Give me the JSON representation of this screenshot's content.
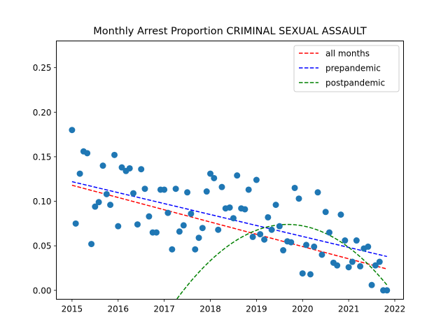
{
  "chart_data": {
    "type": "scatter",
    "title": "Monthly Arrest Proportion CRIMINAL SEXUAL ASSAULT",
    "xlabel": "",
    "ylabel": "",
    "xlim": [
      2014.66,
      2022.19
    ],
    "ylim": [
      -0.01,
      0.28
    ],
    "xticks": [
      2015,
      2016,
      2017,
      2018,
      2019,
      2020,
      2021,
      2022
    ],
    "yticks": [
      0.0,
      0.05,
      0.1,
      0.15,
      0.2,
      0.25
    ],
    "xtick_labels": [
      "2015",
      "2016",
      "2017",
      "2018",
      "2019",
      "2020",
      "2021",
      "2022"
    ],
    "ytick_labels": [
      "0.00",
      "0.05",
      "0.10",
      "0.15",
      "0.20",
      "0.25"
    ],
    "grid": false,
    "legend_position": "top-right",
    "scatter": {
      "color": "#1f77b4",
      "points": [
        [
          2015.0,
          0.18
        ],
        [
          2015.08,
          0.075
        ],
        [
          2015.17,
          0.131
        ],
        [
          2015.25,
          0.156
        ],
        [
          2015.33,
          0.154
        ],
        [
          2015.42,
          0.052
        ],
        [
          2015.5,
          0.094
        ],
        [
          2015.58,
          0.099
        ],
        [
          2015.67,
          0.14
        ],
        [
          2015.75,
          0.108
        ],
        [
          2015.83,
          0.096
        ],
        [
          2015.92,
          0.152
        ],
        [
          2016.0,
          0.072
        ],
        [
          2016.08,
          0.138
        ],
        [
          2016.17,
          0.134
        ],
        [
          2016.25,
          0.137
        ],
        [
          2016.33,
          0.109
        ],
        [
          2016.42,
          0.074
        ],
        [
          2016.5,
          0.136
        ],
        [
          2016.58,
          0.114
        ],
        [
          2016.67,
          0.083
        ],
        [
          2016.75,
          0.065
        ],
        [
          2016.83,
          0.065
        ],
        [
          2016.92,
          0.113
        ],
        [
          2017.0,
          0.113
        ],
        [
          2017.08,
          0.087
        ],
        [
          2017.17,
          0.046
        ],
        [
          2017.25,
          0.114
        ],
        [
          2017.33,
          0.066
        ],
        [
          2017.42,
          0.073
        ],
        [
          2017.5,
          0.11
        ],
        [
          2017.58,
          0.086
        ],
        [
          2017.67,
          0.046
        ],
        [
          2017.75,
          0.059
        ],
        [
          2017.83,
          0.07
        ],
        [
          2017.92,
          0.111
        ],
        [
          2018.0,
          0.131
        ],
        [
          2018.08,
          0.126
        ],
        [
          2018.17,
          0.068
        ],
        [
          2018.25,
          0.116
        ],
        [
          2018.33,
          0.092
        ],
        [
          2018.42,
          0.093
        ],
        [
          2018.5,
          0.081
        ],
        [
          2018.58,
          0.129
        ],
        [
          2018.67,
          0.092
        ],
        [
          2018.75,
          0.091
        ],
        [
          2018.83,
          0.113
        ],
        [
          2018.92,
          0.06
        ],
        [
          2019.0,
          0.124
        ],
        [
          2019.08,
          0.063
        ],
        [
          2019.17,
          0.057
        ],
        [
          2019.25,
          0.082
        ],
        [
          2019.33,
          0.068
        ],
        [
          2019.42,
          0.096
        ],
        [
          2019.5,
          0.072
        ],
        [
          2019.58,
          0.045
        ],
        [
          2019.67,
          0.055
        ],
        [
          2019.75,
          0.054
        ],
        [
          2019.83,
          0.115
        ],
        [
          2019.92,
          0.103
        ],
        [
          2020.0,
          0.019
        ],
        [
          2020.08,
          0.051
        ],
        [
          2020.17,
          0.018
        ],
        [
          2020.25,
          0.049
        ],
        [
          2020.33,
          0.11
        ],
        [
          2020.42,
          0.04
        ],
        [
          2020.5,
          0.088
        ],
        [
          2020.58,
          0.065
        ],
        [
          2020.67,
          0.031
        ],
        [
          2020.75,
          0.028
        ],
        [
          2020.83,
          0.085
        ],
        [
          2020.92,
          0.056
        ],
        [
          2021.0,
          0.026
        ],
        [
          2021.08,
          0.032
        ],
        [
          2021.17,
          0.056
        ],
        [
          2021.25,
          0.027
        ],
        [
          2021.33,
          0.047
        ],
        [
          2021.42,
          0.049
        ],
        [
          2021.5,
          0.006
        ],
        [
          2021.58,
          0.028
        ],
        [
          2021.67,
          0.032
        ],
        [
          2021.75,
          0.0
        ],
        [
          2021.83,
          0.0
        ]
      ]
    },
    "series": [
      {
        "name": "all months",
        "color": "#ff0000",
        "style": "dashed",
        "kind": "linear",
        "x_range": [
          2015.0,
          2021.83
        ],
        "endpoints": [
          0.118,
          0.024
        ]
      },
      {
        "name": "prepandemic",
        "color": "#0000ff",
        "style": "dashed",
        "kind": "linear",
        "x_range": [
          2015.0,
          2021.83
        ],
        "endpoints": [
          0.122,
          0.038
        ]
      },
      {
        "name": "postpandemic",
        "color": "#008000",
        "style": "dashed",
        "kind": "quadratic",
        "x_range": [
          2017.0,
          2021.83
        ],
        "vertex": [
          2019.67,
          0.074
        ],
        "endpoint": [
          2021.83,
          0.006
        ]
      }
    ]
  }
}
